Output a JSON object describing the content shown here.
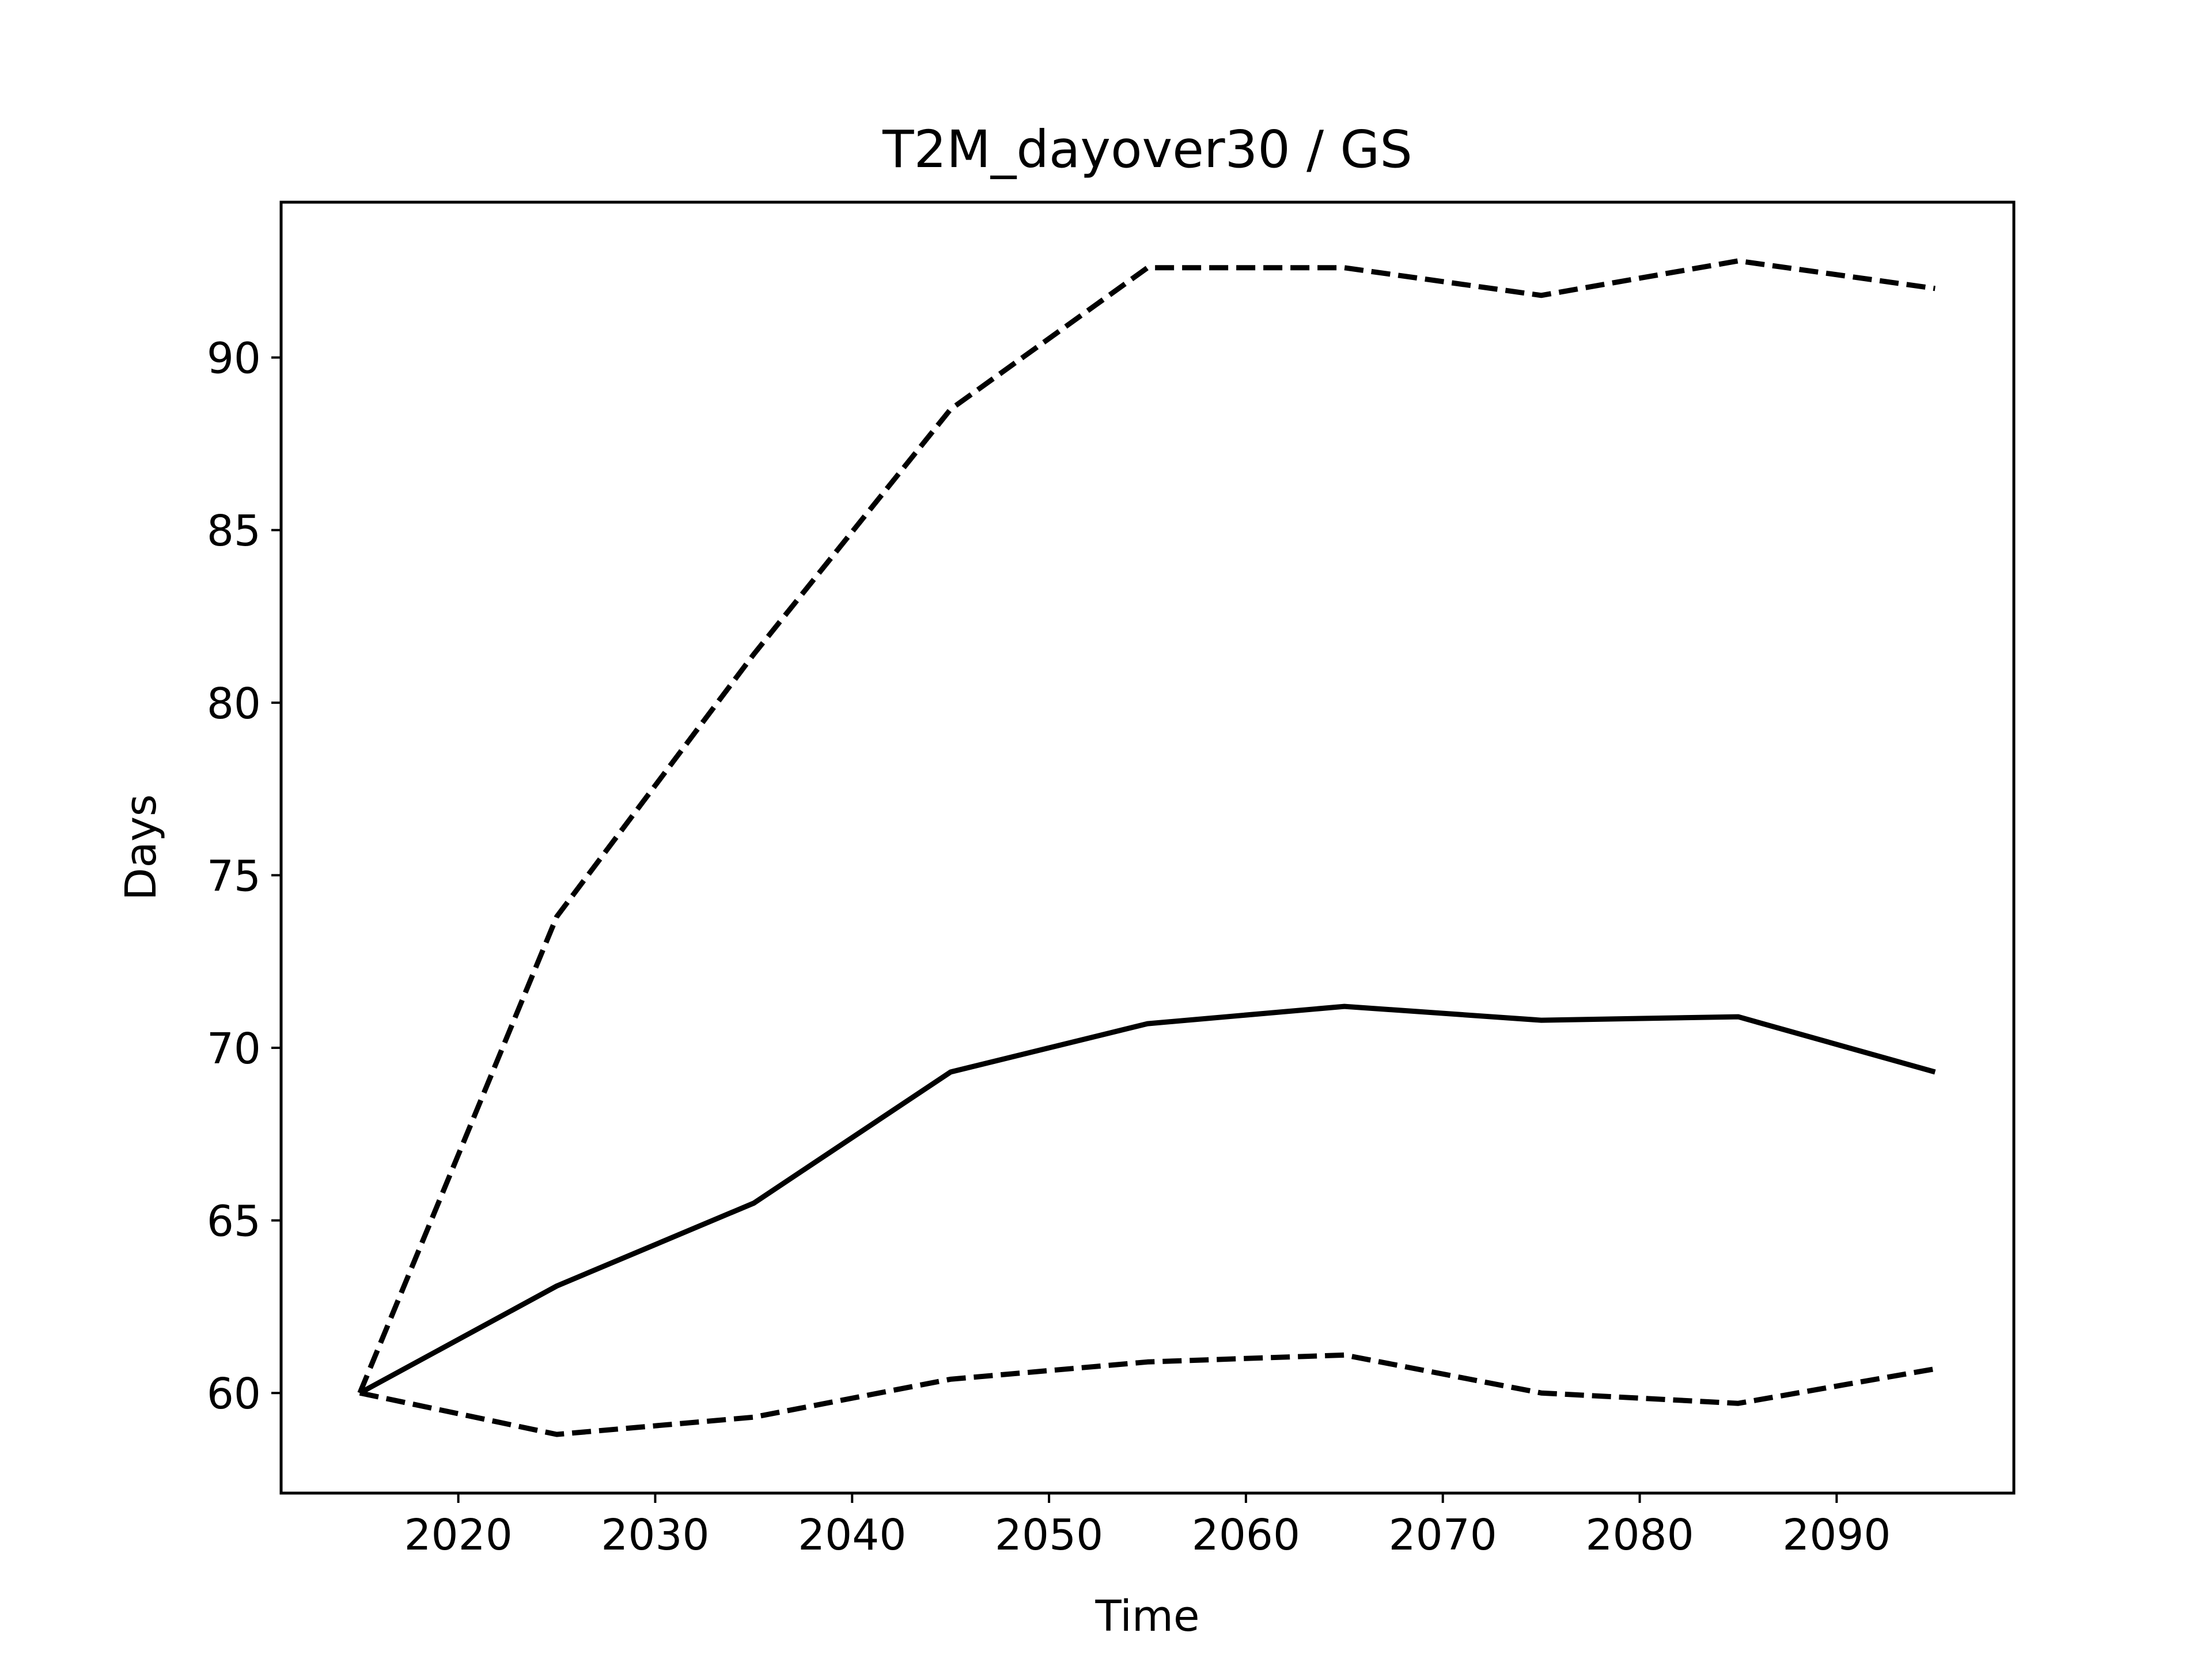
{
  "chart_data": {
    "type": "line",
    "title": "T2M_dayover30 / GS",
    "xlabel": "Time",
    "ylabel": "Days",
    "xlim": [
      2011,
      2099
    ],
    "ylim": [
      57.1,
      94.5
    ],
    "xticks": [
      2020,
      2030,
      2040,
      2050,
      2060,
      2070,
      2080,
      2090
    ],
    "yticks": [
      60,
      65,
      70,
      75,
      80,
      85,
      90
    ],
    "grid": false,
    "legend": false,
    "x": [
      2015,
      2025,
      2035,
      2045,
      2055,
      2065,
      2075,
      2085,
      2095
    ],
    "series": [
      {
        "style": "solid",
        "color": "#000000",
        "values": [
          60.0,
          63.1,
          65.5,
          69.3,
          70.7,
          71.2,
          70.8,
          70.9,
          69.3
        ]
      },
      {
        "style": "dashed",
        "color": "#000000",
        "values": [
          60.0,
          73.8,
          81.4,
          88.5,
          92.6,
          92.6,
          91.8,
          92.8,
          92.0
        ]
      },
      {
        "style": "dashed",
        "color": "#000000",
        "values": [
          60.0,
          58.8,
          59.3,
          60.4,
          60.9,
          61.1,
          60.0,
          59.7,
          60.7
        ]
      }
    ]
  }
}
